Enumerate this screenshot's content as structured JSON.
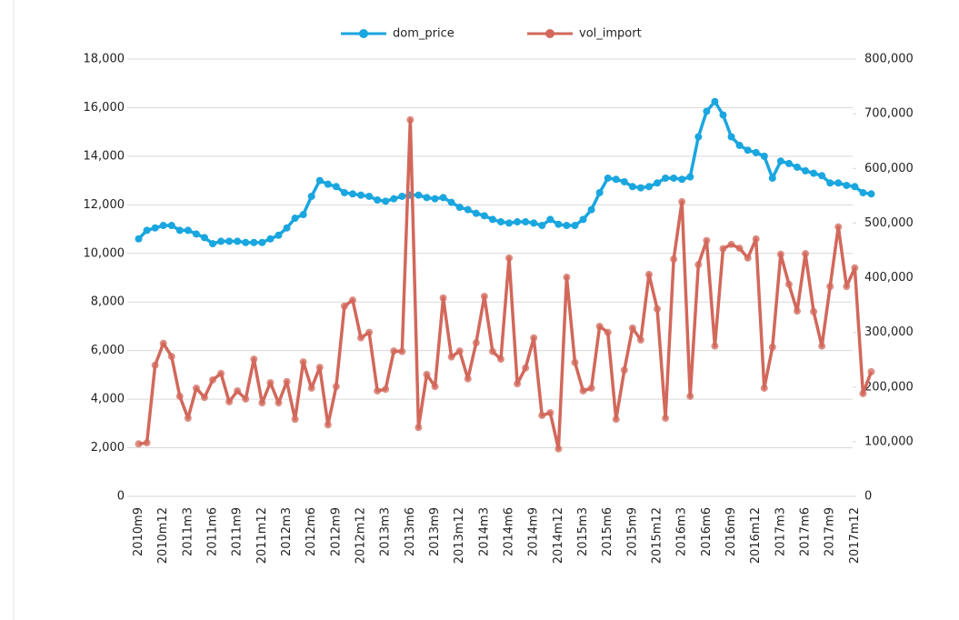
{
  "chart_data": {
    "type": "line",
    "categories": [
      "2010m9",
      null,
      null,
      "2010m12",
      null,
      null,
      "2011m3",
      null,
      null,
      "2011m6",
      null,
      null,
      "2011m9",
      null,
      null,
      "2011m12",
      null,
      null,
      "2012m3",
      null,
      null,
      "2012m6",
      null,
      null,
      "2012m9",
      null,
      null,
      "2012m12",
      null,
      null,
      "2013m3",
      null,
      null,
      "2013m6",
      null,
      null,
      "2013m9",
      null,
      null,
      "2013m12",
      null,
      null,
      "2014m3",
      null,
      null,
      "2014m6",
      null,
      null,
      "2014m9",
      null,
      null,
      "2014m12",
      null,
      null,
      "2015m3",
      null,
      null,
      "2015m6",
      null,
      null,
      "2015m9",
      null,
      null,
      "2015m12",
      null,
      null,
      "2016m3",
      null,
      null,
      "2016m6",
      null,
      null,
      "2016m9",
      null,
      null,
      "2016m12",
      null,
      null,
      "2017m3",
      null,
      null,
      "2017m6",
      null,
      null,
      "2017m9",
      null,
      null,
      "2017m12",
      null,
      null
    ],
    "series": [
      {
        "name": "dom_price",
        "color": "#1aa6df",
        "axis": "y",
        "values": [
          10600,
          10950,
          11050,
          11150,
          11150,
          10950,
          10950,
          10800,
          10650,
          10400,
          10500,
          10500,
          10500,
          10450,
          10450,
          10450,
          10600,
          10750,
          11050,
          11450,
          11600,
          12350,
          13000,
          12850,
          12750,
          12500,
          12450,
          12400,
          12350,
          12200,
          12150,
          12250,
          12350,
          12400,
          12400,
          12300,
          12250,
          12300,
          12100,
          11900,
          11800,
          11650,
          11550,
          11400,
          11300,
          11250,
          11300,
          11300,
          11250,
          11150,
          11400,
          11200,
          11150,
          11150,
          11400,
          11800,
          12500,
          13100,
          13050,
          12950,
          12750,
          12700,
          12750,
          12900,
          13100,
          13100,
          13050,
          13150,
          14800,
          15850,
          16250,
          15700,
          14800,
          14450,
          14250,
          14150,
          14000,
          13100,
          13800,
          13700,
          13550,
          13400,
          13300,
          13200,
          12900,
          12900,
          12800,
          12750,
          12500,
          12450
        ]
      },
      {
        "name": "vol_import",
        "color": "#d2685b",
        "axis": "y2",
        "values": [
          96000,
          98000,
          240000,
          280000,
          256000,
          183000,
          143000,
          198000,
          181000,
          213000,
          225000,
          173000,
          193000,
          178000,
          251000,
          171000,
          208000,
          171000,
          210000,
          141000,
          246000,
          198000,
          236000,
          131000,
          201000,
          348000,
          359000,
          290000,
          300000,
          193000,
          196000,
          266000,
          265000,
          689000,
          126000,
          223000,
          201000,
          363000,
          255000,
          266000,
          215000,
          281000,
          366000,
          265000,
          251000,
          436000,
          206000,
          235000,
          290000,
          148000,
          153000,
          87000,
          401000,
          245000,
          193000,
          198000,
          311000,
          300000,
          141000,
          231000,
          308000,
          286000,
          406000,
          343000,
          143000,
          434000,
          539000,
          183000,
          424000,
          468000,
          275000,
          453000,
          461000,
          454000,
          436000,
          471000,
          198000,
          273000,
          443000,
          388000,
          339000,
          444000,
          338000,
          275000,
          384000,
          493000,
          384000,
          418000,
          188000,
          228000
        ]
      }
    ],
    "ylim": [
      0,
      18000
    ],
    "yticks": [
      0,
      {
        "value": 2000,
        "label": "2,000"
      },
      {
        "value": 4000,
        "label": "4,000"
      },
      {
        "value": 6000,
        "label": "6,000"
      },
      {
        "value": 8000,
        "label": "8,000"
      },
      {
        "value": 10000,
        "label": "10,000"
      },
      {
        "value": 12000,
        "label": "12,000"
      },
      {
        "value": 14000,
        "label": "14,000"
      },
      {
        "value": 16000,
        "label": "16,000"
      },
      {
        "value": 18000,
        "label": "18,000"
      }
    ],
    "y2lim": [
      0,
      800000
    ],
    "y2ticks": [
      0,
      {
        "value": 100000,
        "label": "100,000"
      },
      {
        "value": 200000,
        "label": "200,000"
      },
      {
        "value": 300000,
        "label": "300,000"
      },
      {
        "value": 400000,
        "label": "400,000"
      },
      {
        "value": 500000,
        "label": "500,000"
      },
      {
        "value": 600000,
        "label": "600,000"
      },
      {
        "value": 700000,
        "label": "700,000"
      },
      {
        "value": 800000,
        "label": "800,000"
      }
    ],
    "grid": true,
    "legend": "top"
  }
}
